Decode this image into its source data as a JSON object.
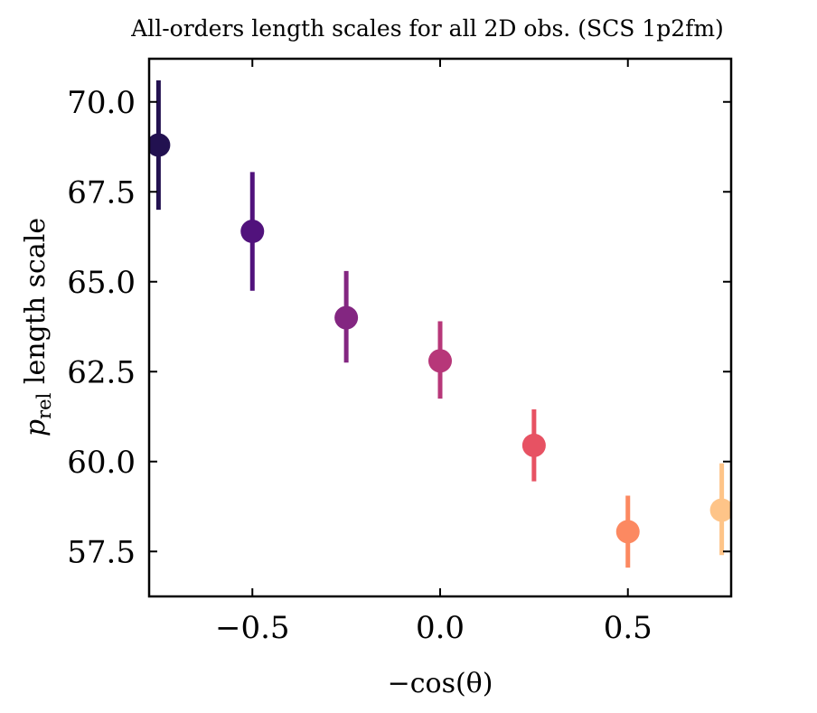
{
  "chart_data": {
    "type": "scatter",
    "title": "All-orders length scales for all 2D obs. (SCS 1p2fm)",
    "xlabel": "−cos(θ)",
    "ylabel": {
      "main": "p",
      "subscript": "rel",
      "rest": " length scale"
    },
    "xlim": [
      -0.775,
      0.775
    ],
    "ylim": [
      56.25,
      71.2
    ],
    "x_ticks": [
      -0.5,
      0.0,
      0.5
    ],
    "x_tick_labels": [
      "−0.5",
      "0.0",
      "0.5"
    ],
    "y_ticks": [
      57.5,
      60.0,
      62.5,
      65.0,
      67.5,
      70.0
    ],
    "y_tick_labels": [
      "57.5",
      "60.0",
      "62.5",
      "65.0",
      "67.5",
      "70.0"
    ],
    "grid": false,
    "points": [
      {
        "x": -0.75,
        "y": 68.8,
        "err_low": 67.0,
        "err_high": 70.6,
        "color": "#221150"
      },
      {
        "x": -0.5,
        "y": 66.4,
        "err_low": 64.75,
        "err_high": 68.05,
        "color": "#51127c"
      },
      {
        "x": -0.25,
        "y": 64.0,
        "err_low": 62.75,
        "err_high": 65.3,
        "color": "#832681"
      },
      {
        "x": 0.0,
        "y": 62.8,
        "err_low": 61.75,
        "err_high": 63.9,
        "color": "#b73779"
      },
      {
        "x": 0.25,
        "y": 60.45,
        "err_low": 59.45,
        "err_high": 61.45,
        "color": "#e75263"
      },
      {
        "x": 0.5,
        "y": 58.05,
        "err_low": 57.05,
        "err_high": 59.05,
        "color": "#fc8961"
      },
      {
        "x": 0.75,
        "y": 58.65,
        "err_low": 57.4,
        "err_high": 59.95,
        "color": "#fec488"
      }
    ]
  }
}
